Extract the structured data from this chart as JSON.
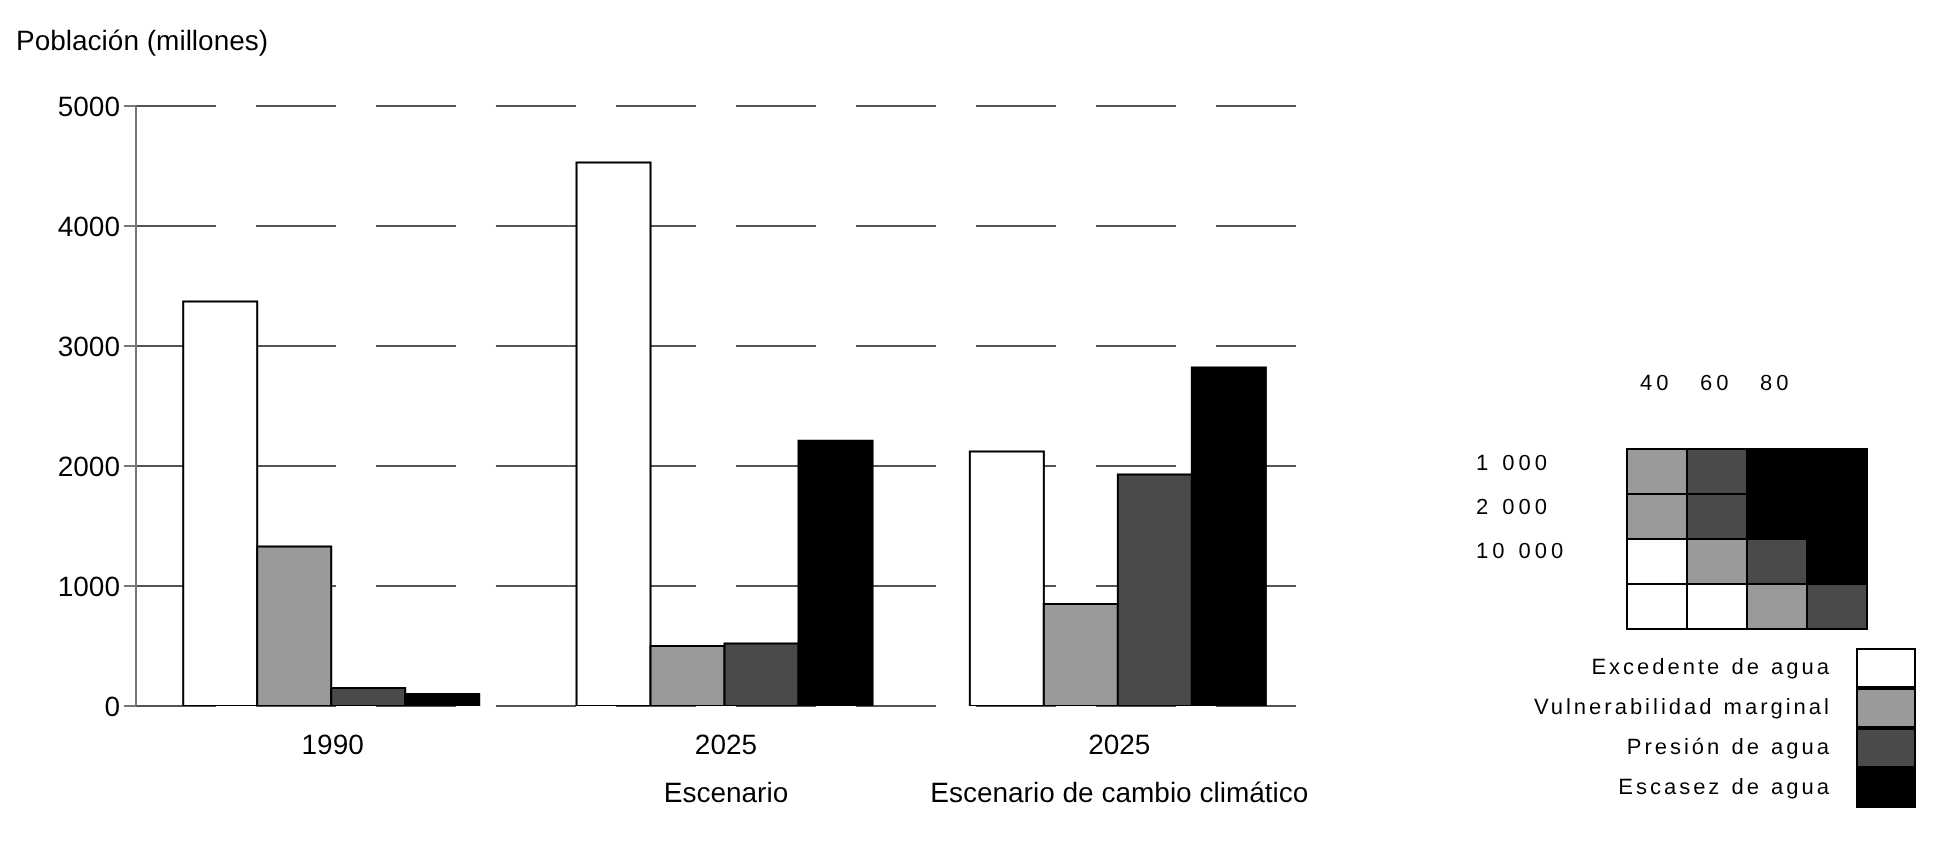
{
  "chart_data": {
    "type": "bar",
    "ylabel": "Población (millones)",
    "categories": [
      "1990",
      "2025\nEscenario",
      "2025\nEscenario de cambio climático"
    ],
    "series": [
      {
        "name": "Excedente de agua",
        "color": "#ffffff",
        "values": [
          3370,
          4530,
          2120
        ]
      },
      {
        "name": "Vulnerabilidad marginal",
        "color": "#9a9a9a",
        "values": [
          1330,
          500,
          850
        ]
      },
      {
        "name": "Presión de agua",
        "color": "#4a4a4a",
        "values": [
          150,
          520,
          1930
        ]
      },
      {
        "name": "Escasez de agua",
        "color": "#000000",
        "values": [
          100,
          2210,
          2820
        ]
      }
    ],
    "ylim": [
      0,
      5000
    ],
    "yticks": [
      0,
      1000,
      2000,
      3000,
      4000,
      5000
    ],
    "grid": "y",
    "line_style": "dashed",
    "legend": "right",
    "annotations": [
      "40",
      "60",
      "80",
      "1 000",
      "2 000",
      "10 000"
    ]
  }
}
